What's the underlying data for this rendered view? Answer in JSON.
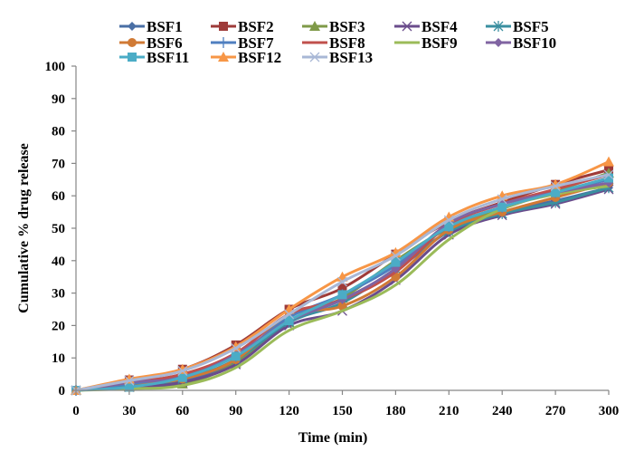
{
  "chart_data": {
    "type": "line",
    "title": "",
    "xlabel": "Time (min)",
    "ylabel": "Cumulative % drug release",
    "x": [
      0,
      30,
      60,
      90,
      120,
      150,
      180,
      210,
      240,
      270,
      300
    ],
    "xticks": [
      "0",
      "30",
      "60",
      "90",
      "120",
      "150",
      "180",
      "210",
      "240",
      "270",
      "300"
    ],
    "yticks": [
      "0",
      "10",
      "20",
      "30",
      "40",
      "50",
      "60",
      "70",
      "80",
      "90",
      "100"
    ],
    "xlim": [
      0,
      300
    ],
    "ylim": [
      0,
      100
    ],
    "grid": false,
    "smooth": true,
    "legend_position": "top",
    "series": [
      {
        "name": "BSF1",
        "color": "#4A6FA5",
        "marker": "diamond",
        "values": [
          0,
          1.5,
          3.0,
          9.0,
          21.0,
          28.0,
          37.0,
          49.0,
          55.0,
          58.5,
          62.5
        ]
      },
      {
        "name": "BSF2",
        "color": "#9E3B39",
        "marker": "square",
        "values": [
          0,
          3.2,
          6.5,
          14.0,
          25.0,
          31.5,
          42.0,
          52.0,
          58.0,
          63.5,
          68.0
        ]
      },
      {
        "name": "BSF3",
        "color": "#7F9A48",
        "marker": "triangle",
        "values": [
          0,
          1.0,
          2.0,
          8.5,
          21.0,
          28.5,
          40.0,
          50.0,
          56.0,
          61.5,
          67.0
        ]
      },
      {
        "name": "BSF4",
        "color": "#6A4C8C",
        "marker": "x",
        "values": [
          0,
          1.0,
          2.5,
          8.0,
          20.0,
          24.5,
          34.0,
          48.0,
          54.0,
          57.5,
          62.0
        ]
      },
      {
        "name": "BSF5",
        "color": "#3A8FA0",
        "marker": "star",
        "values": [
          0,
          1.5,
          3.5,
          9.5,
          21.0,
          27.0,
          37.5,
          49.0,
          54.5,
          58.0,
          62.5
        ]
      },
      {
        "name": "BSF6",
        "color": "#D07A35",
        "marker": "circle",
        "values": [
          0,
          2.0,
          3.5,
          9.5,
          23.0,
          26.0,
          35.0,
          49.5,
          55.0,
          59.5,
          64.0
        ]
      },
      {
        "name": "BSF7",
        "color": "#4F7FC0",
        "marker": "plus",
        "values": [
          0,
          2.0,
          4.5,
          10.5,
          22.5,
          29.5,
          38.5,
          50.5,
          56.5,
          61.0,
          65.0
        ]
      },
      {
        "name": "BSF8",
        "color": "#C0504D",
        "marker": "none",
        "values": [
          0,
          2.5,
          5.0,
          11.5,
          23.5,
          28.0,
          36.5,
          51.0,
          57.5,
          62.0,
          66.5
        ]
      },
      {
        "name": "BSF9",
        "color": "#9BBB59",
        "marker": "none",
        "values": [
          0,
          0.5,
          1.5,
          7.0,
          18.5,
          24.5,
          32.5,
          46.5,
          56.0,
          60.5,
          63.0
        ]
      },
      {
        "name": "BSF10",
        "color": "#8064A2",
        "marker": "diamond",
        "values": [
          0,
          2.5,
          4.0,
          11.0,
          21.5,
          28.0,
          37.5,
          51.5,
          57.5,
          61.0,
          64.0
        ]
      },
      {
        "name": "BSF11",
        "color": "#4BACC6",
        "marker": "square",
        "values": [
          0,
          1.0,
          4.0,
          10.5,
          21.5,
          29.5,
          39.5,
          50.5,
          56.5,
          61.0,
          65.5
        ]
      },
      {
        "name": "BSF12",
        "color": "#F79646",
        "marker": "triangle",
        "values": [
          0,
          3.5,
          6.5,
          13.5,
          25.0,
          35.0,
          42.5,
          53.5,
          60.0,
          63.5,
          70.5
        ]
      },
      {
        "name": "BSF13",
        "color": "#A9B8D6",
        "marker": "x",
        "values": [
          0,
          3.0,
          6.0,
          13.0,
          23.5,
          33.5,
          41.5,
          52.5,
          59.0,
          63.0,
          66.5
        ]
      }
    ]
  }
}
